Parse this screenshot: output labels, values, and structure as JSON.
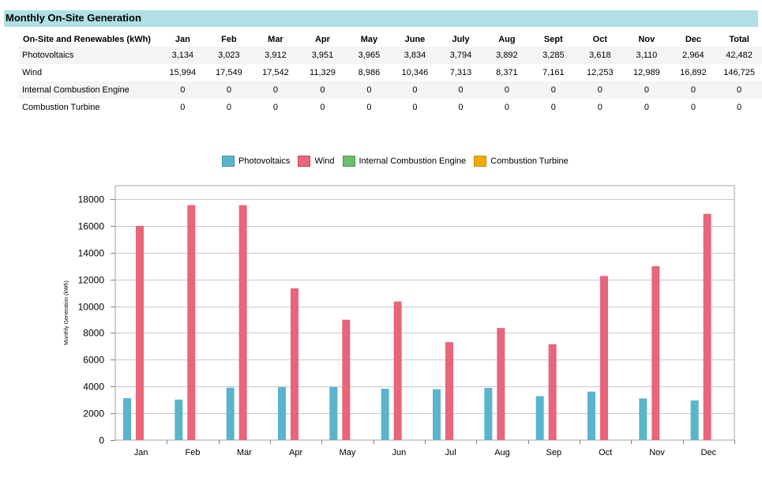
{
  "header": {
    "title": "Monthly On-Site Generation"
  },
  "table": {
    "columns": [
      "On-Site and Renewables  (kWh)",
      "Jan",
      "Feb",
      "Mar",
      "Apr",
      "May",
      "June",
      "July",
      "Aug",
      "Sept",
      "Oct",
      "Nov",
      "Dec",
      "Total"
    ],
    "rows": [
      {
        "label": "Photovoltaics",
        "values": [
          "3,134",
          "3,023",
          "3,912",
          "3,951",
          "3,965",
          "3,834",
          "3,794",
          "3,892",
          "3,285",
          "3,618",
          "3,110",
          "2,964",
          "42,482"
        ]
      },
      {
        "label": "Wind",
        "values": [
          "15,994",
          "17,549",
          "17,542",
          "11,329",
          "8,986",
          "10,346",
          "7,313",
          "8,371",
          "7,161",
          "12,253",
          "12,989",
          "16,892",
          "146,725"
        ]
      },
      {
        "label": "Internal Combustion Engine",
        "values": [
          "0",
          "0",
          "0",
          "0",
          "0",
          "0",
          "0",
          "0",
          "0",
          "0",
          "0",
          "0",
          "0"
        ]
      },
      {
        "label": "Combustion Turbine",
        "values": [
          "0",
          "0",
          "0",
          "0",
          "0",
          "0",
          "0",
          "0",
          "0",
          "0",
          "0",
          "0",
          "0"
        ]
      }
    ]
  },
  "chart_data": {
    "type": "bar",
    "ylabel": "Monthly Generation (kWh)",
    "categories": [
      "Jan",
      "Feb",
      "Mar",
      "Apr",
      "May",
      "Jun",
      "Jul",
      "Aug",
      "Sep",
      "Oct",
      "Nov",
      "Dec"
    ],
    "series": [
      {
        "name": "Photovoltaics",
        "color": "#5ab4cc",
        "values": [
          3134,
          3023,
          3912,
          3951,
          3965,
          3834,
          3794,
          3892,
          3285,
          3618,
          3110,
          2964
        ]
      },
      {
        "name": "Wind",
        "color": "#e8657a",
        "values": [
          15994,
          17549,
          17542,
          11329,
          8986,
          10346,
          7313,
          8371,
          7161,
          12253,
          12989,
          16892
        ]
      },
      {
        "name": "Internal Combustion Engine",
        "color": "#6bbf6b",
        "values": [
          0,
          0,
          0,
          0,
          0,
          0,
          0,
          0,
          0,
          0,
          0,
          0
        ]
      },
      {
        "name": "Combustion Turbine",
        "color": "#f0ac00",
        "values": [
          0,
          0,
          0,
          0,
          0,
          0,
          0,
          0,
          0,
          0,
          0,
          0
        ]
      }
    ],
    "ylim": [
      0,
      19000
    ],
    "yticks": [
      0,
      2000,
      4000,
      6000,
      8000,
      10000,
      12000,
      14000,
      16000,
      18000
    ],
    "ytick_labels": [
      "0",
      "2000",
      "4000",
      "6000",
      "8000",
      "10000",
      "12000",
      "14000",
      "16000",
      "18000"
    ],
    "grid": true,
    "legend": "top"
  }
}
